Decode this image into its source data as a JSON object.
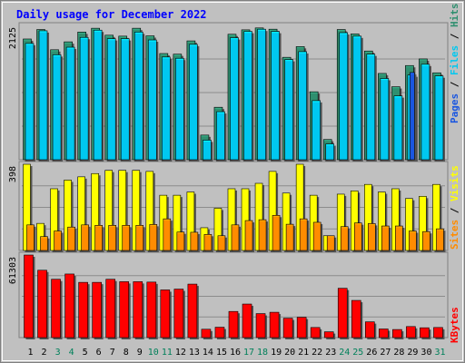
{
  "chart_data": {
    "type": "bar",
    "title": "Daily usage for December 2022",
    "categories": [
      "1",
      "2",
      "3",
      "4",
      "5",
      "6",
      "7",
      "8",
      "9",
      "10",
      "11",
      "12",
      "13",
      "14",
      "15",
      "16",
      "17",
      "18",
      "19",
      "20",
      "21",
      "22",
      "23",
      "24",
      "25",
      "26",
      "27",
      "28",
      "29",
      "30",
      "31"
    ],
    "weekend_days": [
      "3",
      "4",
      "10",
      "11",
      "17",
      "18",
      "24",
      "25",
      "31"
    ],
    "panels": [
      {
        "id": "requests",
        "ymax_label": "2125",
        "ymax": 2125,
        "legend": [
          "Pages",
          "/",
          "Files",
          "/",
          "Hits"
        ],
        "series": [
          {
            "name": "Hits",
            "color": "#2f8f6f",
            "values": [
              1910,
              2060,
              1740,
              1865,
              2020,
              2080,
              1970,
              1955,
              2080,
              1960,
              1680,
              1670,
              1880,
              390,
              830,
              1985,
              2055,
              2085,
              2065,
              1620,
              1790,
              1075,
              320,
              2060,
              1990,
              1720,
              1365,
              1155,
              1490,
              1595,
              1375
            ]
          },
          {
            "name": "Files",
            "color": "#00c8f0",
            "values": [
              1840,
              2040,
              1660,
              1780,
              1935,
              2050,
              1915,
              1915,
              2020,
              1895,
              1625,
              1605,
              1825,
              310,
              760,
              1930,
              2030,
              2065,
              2030,
              1585,
              1710,
              935,
              250,
              2010,
              1955,
              1670,
              1285,
              1010,
              1340,
              1510,
              1325
            ]
          },
          {
            "name": "Pages",
            "color": "#1a56e0",
            "values": [
              0,
              0,
              0,
              0,
              0,
              0,
              0,
              0,
              0,
              0,
              0,
              0,
              0,
              0,
              0,
              0,
              0,
              0,
              0,
              0,
              0,
              0,
              0,
              0,
              0,
              0,
              0,
              0,
              1380,
              0,
              0
            ]
          }
        ]
      },
      {
        "id": "visits",
        "ymax_label": "398",
        "ymax": 398,
        "legend": [
          "Sites",
          "/",
          "Visits"
        ],
        "series": [
          {
            "name": "Visits",
            "color": "#ffff00",
            "values": [
              398,
              125,
              285,
              325,
              340,
              355,
              370,
              370,
              370,
              365,
              255,
              255,
              270,
              105,
              195,
              285,
              285,
              310,
              365,
              265,
              398,
              255,
              68,
              260,
              275,
              305,
              270,
              285,
              240,
              250,
              305
            ]
          },
          {
            "name": "Sites",
            "color": "#ff8c00",
            "values": [
              118,
              64,
              90,
              108,
              118,
              116,
              116,
              116,
              116,
              120,
              146,
              85,
              84,
              74,
              68,
              118,
              138,
              142,
              162,
              121,
              146,
              130,
              68,
              110,
              127,
              124,
              113,
              113,
              90,
              87,
              100
            ]
          }
        ]
      },
      {
        "id": "kbytes",
        "ymax_label": "61303",
        "ymax": 61303,
        "legend": [
          "KBytes"
        ],
        "series": [
          {
            "name": "KBytes",
            "color": "#ff0000",
            "values": [
              61303,
              50000,
              43300,
              47200,
              41000,
              41000,
              43300,
              41500,
              41500,
              41200,
              35400,
              36000,
              39700,
              6200,
              7700,
              19400,
              24900,
              17800,
              18800,
              14400,
              15100,
              7500,
              4300,
              36600,
              27600,
              11700,
              6400,
              6000,
              8200,
              7300,
              7500
            ]
          }
        ]
      }
    ],
    "colors": {
      "background": "#c0c0c0",
      "outer": "#ffffff",
      "title": "#0000ff",
      "weekday_label": "#000000",
      "weekend_label": "#00805a",
      "grid": "#8c8c8c",
      "legend_sep": "#000000"
    }
  }
}
